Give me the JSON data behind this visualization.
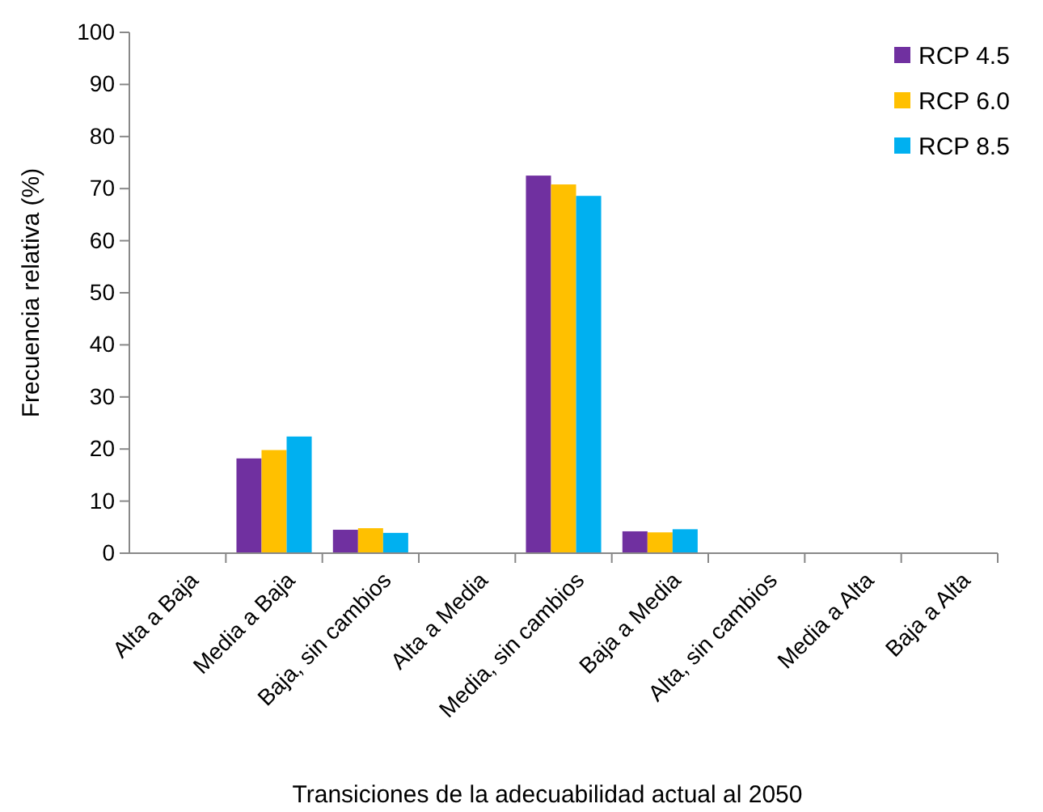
{
  "chart_data": {
    "type": "bar",
    "xlabel": "Transiciones de la adecuabilidad actual al 2050",
    "ylabel": "Frecuencia relativa (%)",
    "categories": [
      "Alta a Baja",
      "Media a Baja",
      "Baja, sin cambios",
      "Alta a Media",
      "Media, sin cambios",
      "Baja a Media",
      "Alta, sin cambios",
      "Media a Alta",
      "Baja a Alta"
    ],
    "series": [
      {
        "name": "RCP 4.5",
        "color": "#7030a0",
        "values": [
          0,
          18.2,
          4.5,
          0,
          72.5,
          4.2,
          0,
          0,
          0
        ]
      },
      {
        "name": "RCP 6.0",
        "color": "#ffc000",
        "values": [
          0,
          19.8,
          4.8,
          0,
          70.8,
          4.0,
          0,
          0,
          0
        ]
      },
      {
        "name": "RCP 8.5",
        "color": "#00b0f0",
        "values": [
          0,
          22.4,
          3.9,
          0,
          68.6,
          4.6,
          0,
          0,
          0
        ]
      }
    ],
    "ylim": [
      0,
      100
    ],
    "yticks": [
      0,
      10,
      20,
      30,
      40,
      50,
      60,
      70,
      80,
      90,
      100
    ],
    "grid": false,
    "legend": "top right"
  }
}
